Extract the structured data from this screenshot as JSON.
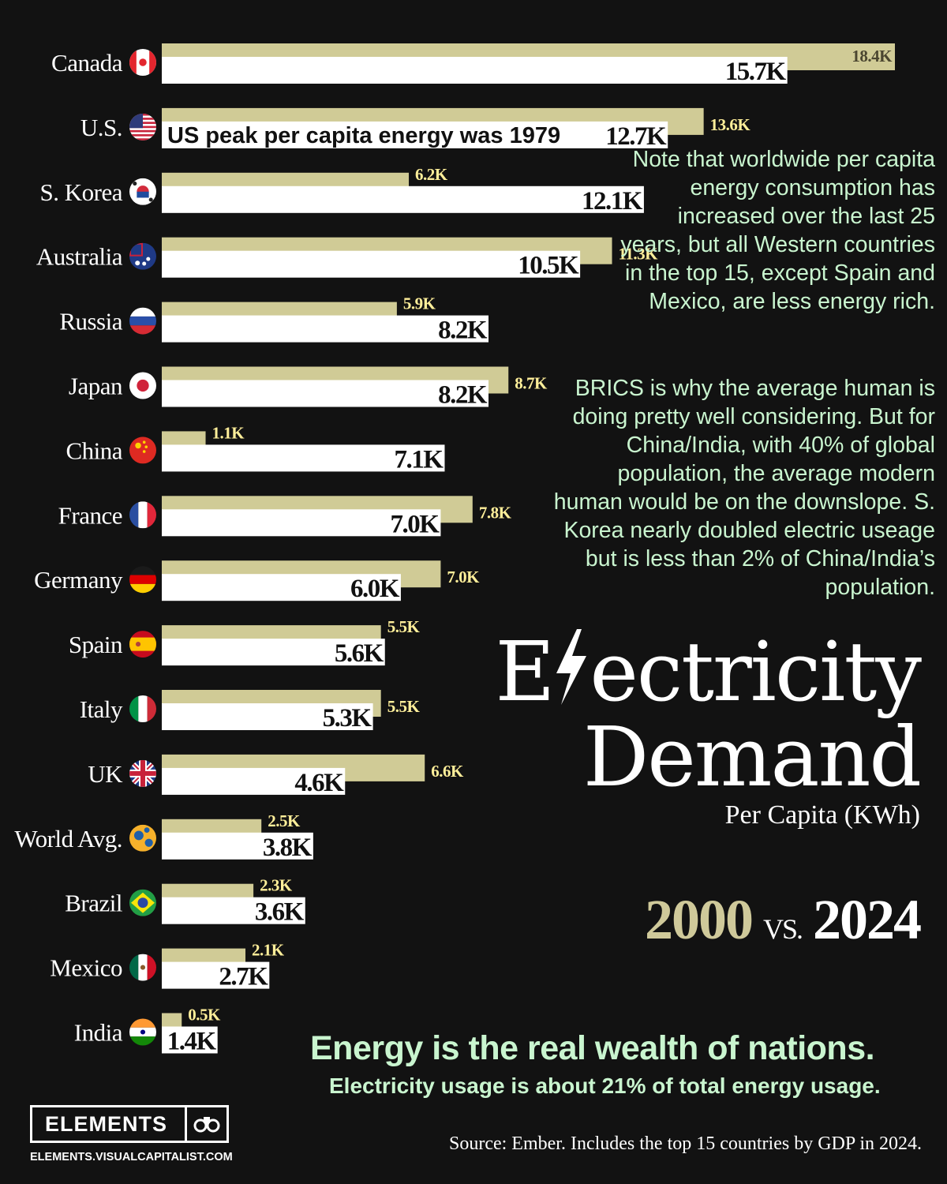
{
  "chart_data": {
    "type": "bar",
    "title": "Electricity Demand",
    "title_words": [
      "E",
      "ectricity",
      "Demand"
    ],
    "subtitle": "Per Capita (KWh)",
    "unit": "KWh per capita",
    "categories": [
      "Canada",
      "U.S.",
      "S. Korea",
      "Australia",
      "Russia",
      "Japan",
      "China",
      "France",
      "Germany",
      "Spain",
      "Italy",
      "UK",
      "World Avg.",
      "Brazil",
      "Mexico",
      "India"
    ],
    "series": [
      {
        "name": "2000",
        "color": "#d0cb96",
        "values": [
          18.4,
          13.6,
          6.2,
          11.3,
          5.9,
          8.7,
          1.1,
          7.8,
          7.0,
          5.5,
          5.5,
          6.6,
          2.5,
          2.3,
          2.1,
          0.5
        ],
        "labels": [
          "18.4K",
          "13.6K",
          "6.2K",
          "11.3K",
          "5.9K",
          "8.7K",
          "1.1K",
          "7.8K",
          "7.0K",
          "5.5K",
          "5.5K",
          "6.6K",
          "2.5K",
          "2.3K",
          "2.1K",
          "0.5K"
        ]
      },
      {
        "name": "2024",
        "color": "#ffffff",
        "values": [
          15.7,
          12.7,
          12.1,
          10.5,
          8.2,
          8.2,
          7.1,
          7.0,
          6.0,
          5.6,
          5.3,
          4.6,
          3.8,
          3.6,
          2.7,
          1.4
        ],
        "labels": [
          "15.7K",
          "12.7K",
          "12.1K",
          "10.5K",
          "8.2K",
          "8.2K",
          "7.1K",
          "7.0K",
          "6.0K",
          "5.6K",
          "5.3K",
          "4.6K",
          "3.8K",
          "3.6K",
          "2.7K",
          "1.4K"
        ]
      }
    ],
    "flags": [
      "canada-flag",
      "us-flag",
      "south-korea-flag",
      "australia-flag",
      "russia-flag",
      "japan-flag",
      "china-flag",
      "france-flag",
      "germany-flag",
      "spain-flag",
      "italy-flag",
      "uk-flag",
      "world-globe",
      "brazil-flag",
      "mexico-flag",
      "india-flag"
    ],
    "xlim": [
      0,
      18.4
    ],
    "annotation": "US peak per capita energy was 1979",
    "year_a": "2000",
    "year_vs": "VS.",
    "year_b": "2024"
  },
  "notes": {
    "note1": "Note that worldwide per capita energy consumption has increased over the last 25 years, but all Western countries in the top 15, except Spain and Mexico, are less energy rich.",
    "note2": "BRICS is why the average human is doing pretty well considering. But for China/India, with 40% of global population, the average modern human would be on the downslope. S. Korea nearly doubled electric useage but is less than 2% of China/India’s population."
  },
  "headline": "Energy is the real wealth of nations.",
  "subheadline": "Electricity usage is about 21% of total energy usage.",
  "source": "Source: Ember. Includes the top 15 countries by GDP in 2024.",
  "brand": {
    "name": "ELEMENTS",
    "url": "ELEMENTS.VISUALCAPITALIST.COM",
    "icon": "binoculars-icon"
  }
}
